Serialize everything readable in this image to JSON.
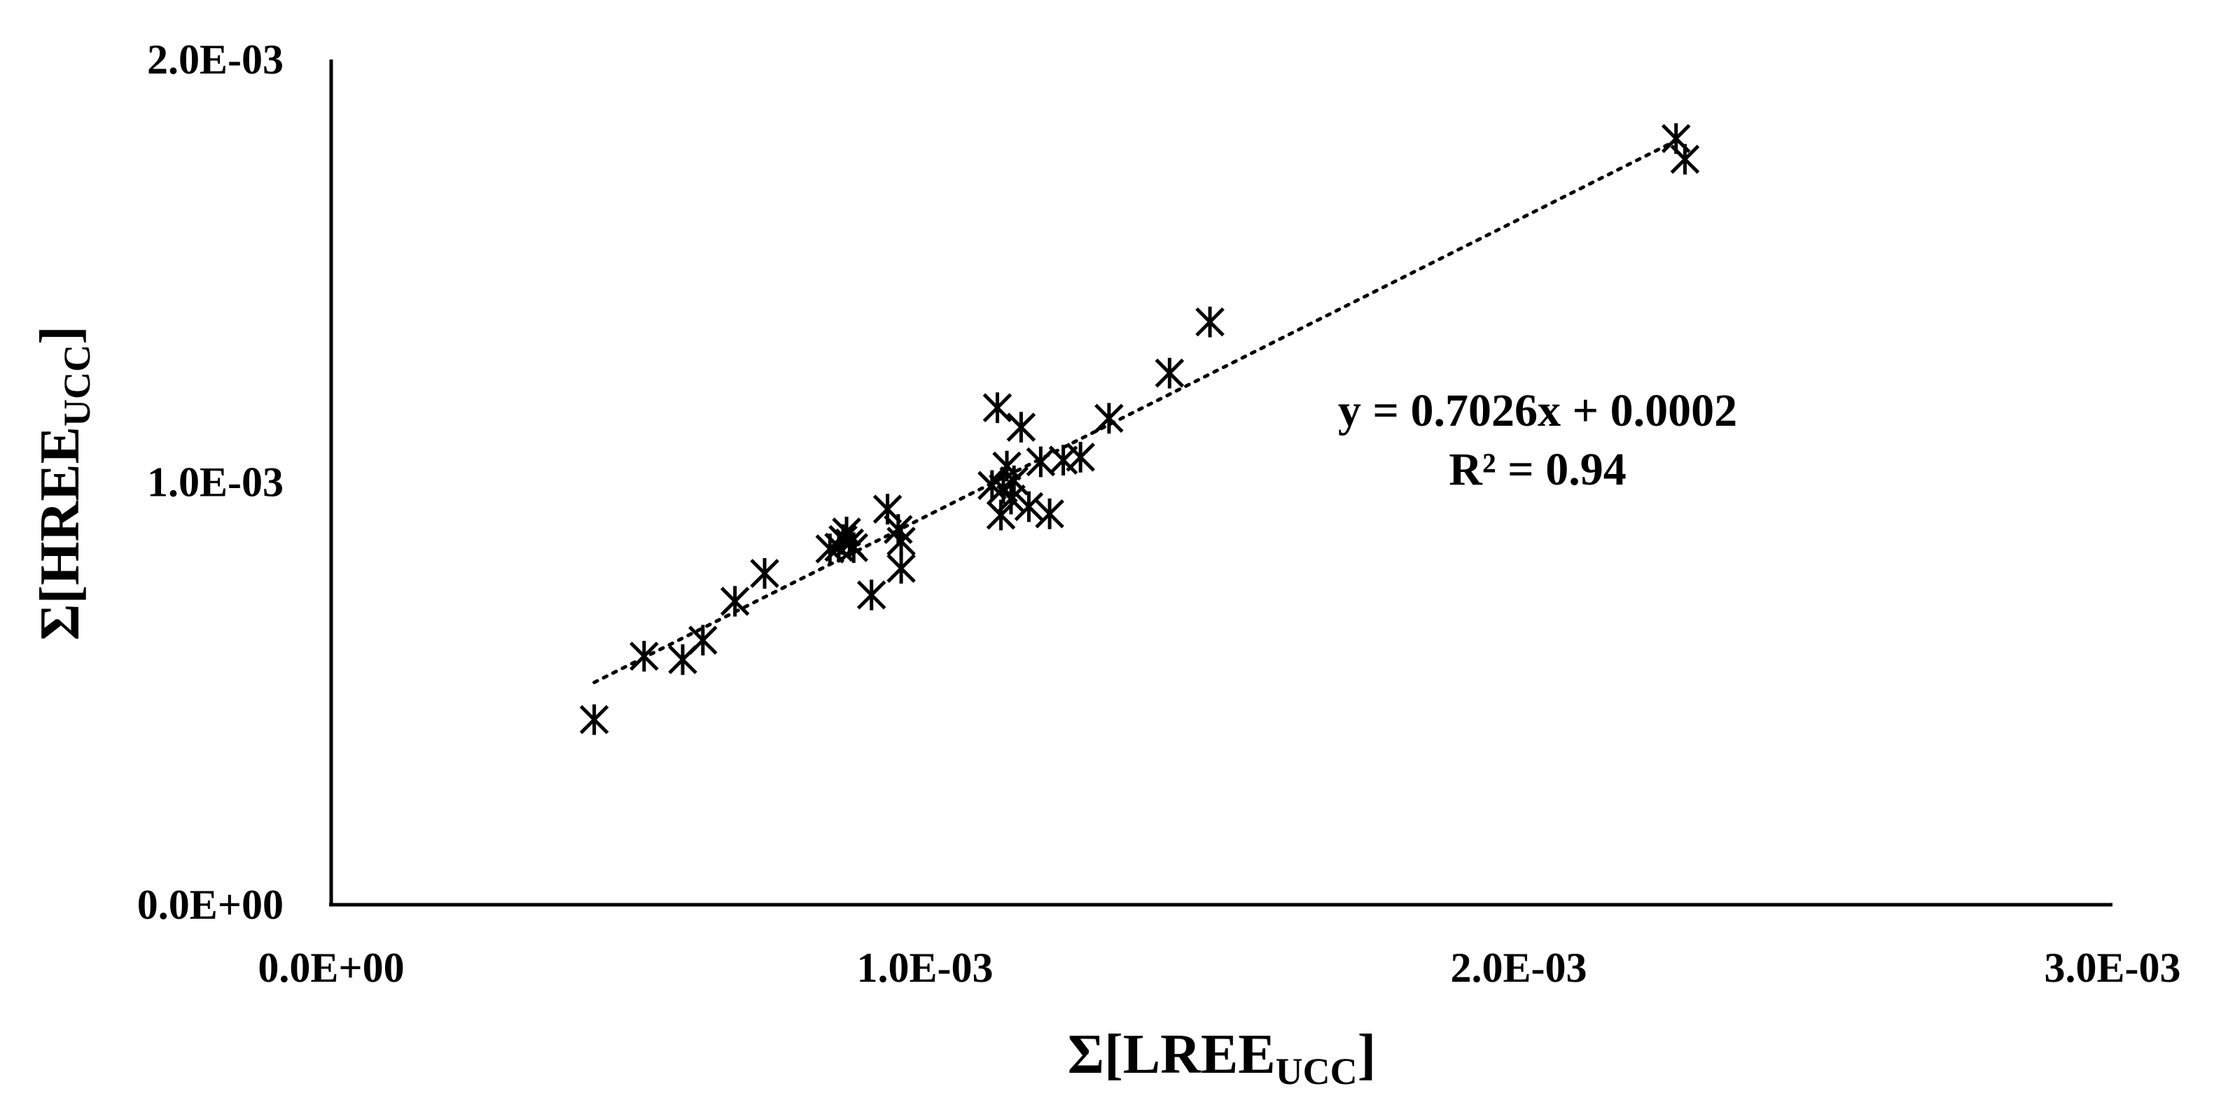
{
  "chart_data": {
    "type": "scatter",
    "title": "",
    "xlabel": {
      "main": "Σ[LREE",
      "sub": "UCC",
      "close": "]"
    },
    "ylabel": {
      "main": "Σ[HREE",
      "sub": "UCC",
      "close": "]"
    },
    "xlim": [
      0,
      0.003
    ],
    "ylim": [
      0,
      0.002
    ],
    "x_ticks": [
      {
        "value": 0,
        "label": "0.0E+00"
      },
      {
        "value": 0.001,
        "label": "1.0E-03"
      },
      {
        "value": 0.002,
        "label": "2.0E-03"
      },
      {
        "value": 0.003,
        "label": "3.0E-03"
      }
    ],
    "y_ticks": [
      {
        "value": 0,
        "label": "0.0E+00"
      },
      {
        "value": 0.001,
        "label": "1.0E-03"
      },
      {
        "value": 0.002,
        "label": "2.0E-03"
      }
    ],
    "grid": false,
    "legend": "none",
    "marker": "asterisk",
    "marker_color": "#000000",
    "series": [
      {
        "points": [
          [
            0.000443,
            0.000438
          ],
          [
            0.000527,
            0.000588
          ],
          [
            0.000592,
            0.00058
          ],
          [
            0.000626,
            0.000626
          ],
          [
            0.00068,
            0.000718
          ],
          [
            0.00073,
            0.000784
          ],
          [
            0.00084,
            0.000842
          ],
          [
            0.000855,
            0.000846
          ],
          [
            0.000862,
            0.000864
          ],
          [
            0.000868,
            0.000882
          ],
          [
            0.000873,
            0.000856
          ],
          [
            0.00088,
            0.000845
          ],
          [
            0.00091,
            0.000733
          ],
          [
            0.000937,
            0.000936
          ],
          [
            0.000955,
            0.000888
          ],
          [
            0.00096,
            0.000796
          ],
          [
            0.00096,
            0.00086
          ],
          [
            0.001113,
            0.000992
          ],
          [
            0.001122,
            0.001176
          ],
          [
            0.001128,
            0.000922
          ],
          [
            0.001132,
            0.000985
          ],
          [
            0.001138,
            0.001038
          ],
          [
            0.001145,
            0.00096
          ],
          [
            0.00115,
            0.001003
          ],
          [
            0.001162,
            0.00113
          ],
          [
            0.001175,
            0.000942
          ],
          [
            0.001195,
            0.001048
          ],
          [
            0.00121,
            0.000925
          ],
          [
            0.001233,
            0.001052
          ],
          [
            0.001262,
            0.001059
          ],
          [
            0.00131,
            0.001151
          ],
          [
            0.001412,
            0.001258
          ],
          [
            0.00148,
            0.001379
          ],
          [
            0.002265,
            0.001813
          ],
          [
            0.00228,
            0.001764
          ]
        ]
      }
    ],
    "trendline": {
      "style": "dotted",
      "slope": 0.7026,
      "intercept": 0.0002,
      "x_range": [
        0.000443,
        0.002265
      ],
      "y_values": [
        0.000526,
        0.001808
      ]
    },
    "annotations": [
      {
        "text": "y = 0.7026x + 0.0002"
      },
      {
        "text": "R² = 0.94"
      }
    ]
  }
}
